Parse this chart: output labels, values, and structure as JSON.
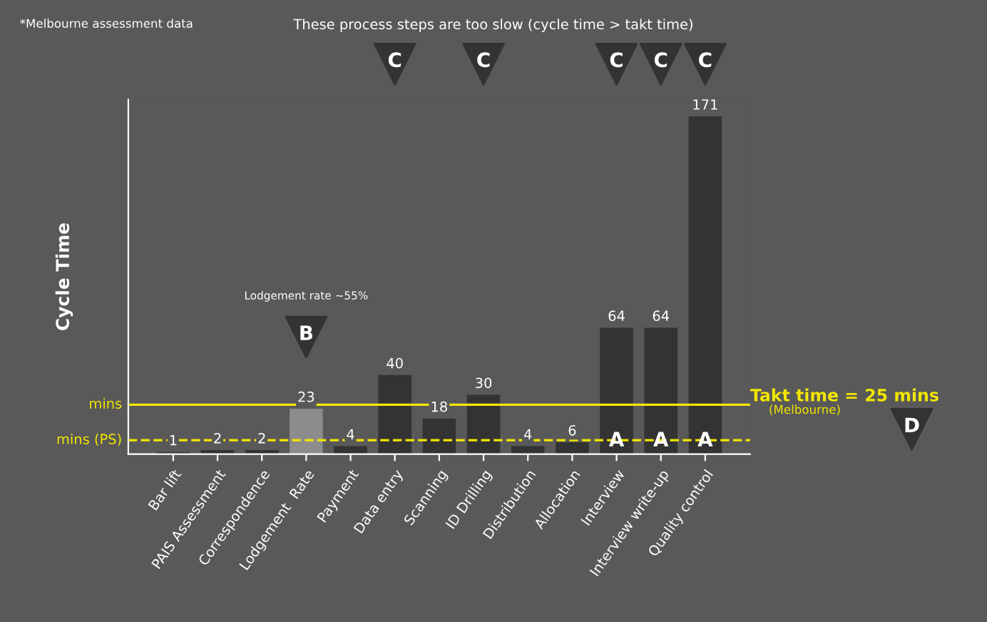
{
  "chart_data": {
    "type": "bar",
    "ylabel": "Cycle Time",
    "categories": [
      "Bar lift",
      "PAIS Assessment",
      "Correspondence",
      "Lodgement  Rate",
      "Payment",
      "Data entry",
      "Scanning",
      "ID Drilling",
      "Distribution",
      "Allocation",
      "Interview",
      "Interview write-up",
      "Quality control"
    ],
    "values": [
      1,
      2,
      2,
      23,
      4,
      40,
      18,
      30,
      4,
      6,
      64,
      64,
      171
    ],
    "colors": [
      "#333333",
      "#333333",
      "#333333",
      "#8c8c8c",
      "#333333",
      "#333333",
      "#333333",
      "#333333",
      "#333333",
      "#333333",
      "#333333",
      "#333333",
      "#333333"
    ],
    "data_labels": true,
    "ref_lines": [
      {
        "axis": "y",
        "value": 25,
        "label": "Takt time = 25 mins",
        "color": "#f2e600",
        "line_style": "solid"
      },
      {
        "axis": "y",
        "value": 7,
        "label": "mins (PS)",
        "color": "#f2e600",
        "line_style": "dashed"
      }
    ],
    "annotations": [
      "*Melbourne assessment data",
      "These process steps are too slow (cycle time > takt time)",
      "(Melbourne)",
      "mins",
      "C",
      "C",
      "C",
      "C",
      "C",
      "Lodgement rate ~55%",
      "B",
      "A",
      "A",
      "A",
      "D"
    ],
    "grid": false
  }
}
